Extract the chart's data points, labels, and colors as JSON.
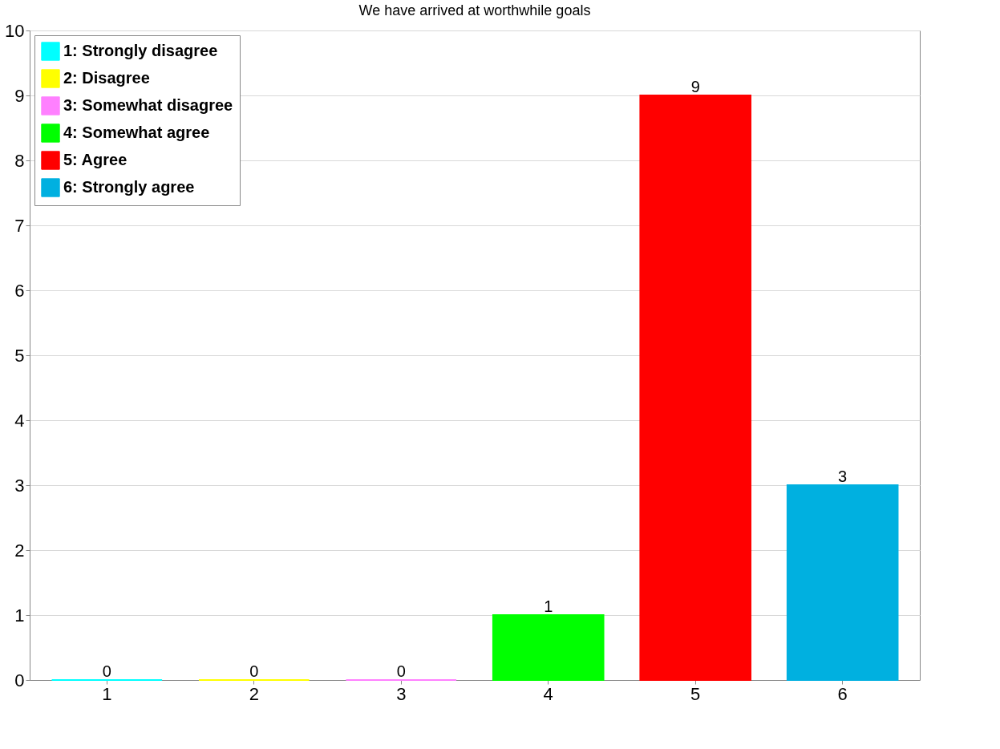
{
  "chart_data": {
    "type": "bar",
    "title": "We have arrived at worthwhile goals",
    "categories": [
      "1",
      "2",
      "3",
      "4",
      "5",
      "6"
    ],
    "series": [
      {
        "name": "1: Strongly disagree",
        "color": "#00ffff",
        "values": [
          0,
          null,
          null,
          null,
          null,
          null
        ]
      },
      {
        "name": "2: Disagree",
        "color": "#ffff00",
        "values": [
          null,
          0,
          null,
          null,
          null,
          null
        ]
      },
      {
        "name": "3: Somewhat disagree",
        "color": "#ff80ff",
        "values": [
          null,
          null,
          0,
          null,
          null,
          null
        ]
      },
      {
        "name": "4: Somewhat agree",
        "color": "#00ff00",
        "values": [
          null,
          null,
          null,
          1,
          null,
          null
        ]
      },
      {
        "name": "5: Agree",
        "color": "#ff0000",
        "values": [
          null,
          null,
          null,
          null,
          9,
          null
        ]
      },
      {
        "name": "6: Strongly agree",
        "color": "#00b0e0",
        "values": [
          null,
          null,
          null,
          null,
          null,
          3
        ]
      }
    ],
    "ylim": [
      0,
      10
    ],
    "yticks": [
      0,
      1,
      2,
      3,
      4,
      5,
      6,
      7,
      8,
      9,
      10
    ],
    "grid": "y",
    "legend": "top left",
    "data_labels": true
  }
}
